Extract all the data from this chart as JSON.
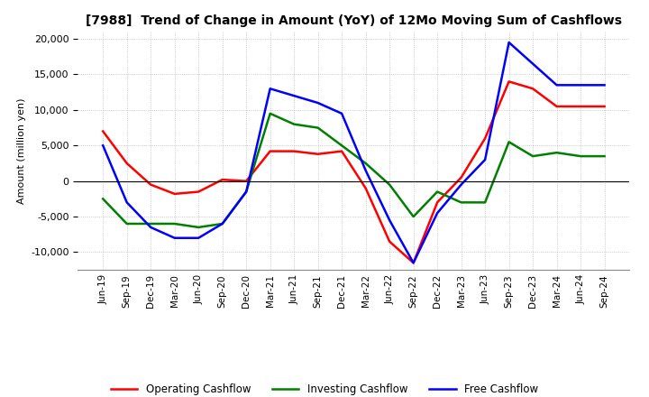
{
  "title": "[7988]  Trend of Change in Amount (YoY) of 12Mo Moving Sum of Cashflows",
  "ylabel": "Amount (million yen)",
  "ylim": [
    -12500,
    21000
  ],
  "yticks": [
    -10000,
    -5000,
    0,
    5000,
    10000,
    15000,
    20000
  ],
  "x_labels": [
    "Jun-19",
    "Sep-19",
    "Dec-19",
    "Mar-20",
    "Jun-20",
    "Sep-20",
    "Dec-20",
    "Mar-21",
    "Jun-21",
    "Sep-21",
    "Dec-21",
    "Mar-22",
    "Jun-22",
    "Sep-22",
    "Dec-22",
    "Mar-23",
    "Jun-23",
    "Sep-23",
    "Dec-23",
    "Mar-24",
    "Jun-24",
    "Sep-24"
  ],
  "operating": [
    7000,
    2500,
    -500,
    -1800,
    -1500,
    200,
    0,
    4200,
    4200,
    3800,
    4200,
    -1000,
    -8500,
    -11500,
    -3000,
    500,
    6000,
    14000,
    13000,
    10500,
    10500,
    10500
  ],
  "investing": [
    -2500,
    -6000,
    -6000,
    -6000,
    -6500,
    -6000,
    -1500,
    9500,
    8000,
    7500,
    5000,
    2500,
    -500,
    -5000,
    -1500,
    -3000,
    -3000,
    5500,
    3500,
    4000,
    3500,
    3500
  ],
  "free": [
    5000,
    -3000,
    -6500,
    -8000,
    -8000,
    -6000,
    -1500,
    13000,
    12000,
    11000,
    9500,
    1500,
    -5500,
    -11500,
    -4500,
    -500,
    3000,
    19500,
    16500,
    13500,
    13500,
    13500
  ],
  "operating_color": "#ff0000",
  "investing_color": "#008000",
  "free_color": "#0000ff",
  "background_color": "#ffffff",
  "grid_color": "#aaaaaa"
}
